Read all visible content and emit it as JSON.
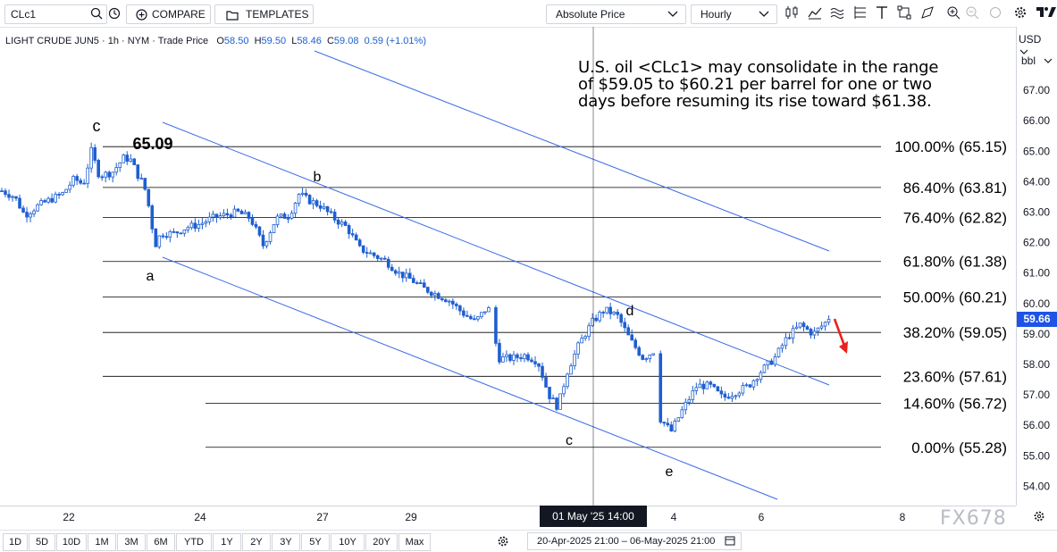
{
  "toolbar": {
    "symbol": "CLc1",
    "compare_label": "COMPARE",
    "templates_label": "TEMPLATES",
    "price_type": "Absolute Price",
    "interval": "Hourly"
  },
  "legend": {
    "title": "LIGHT CRUDE JUN5 · 1h · NYM · Trade Price",
    "o_label": "O",
    "o": "58.50",
    "h_label": "H",
    "h": "59.50",
    "l_label": "L",
    "l": "58.46",
    "c_label": "C",
    "c": "59.08",
    "change": "0.59 (+1.01%)"
  },
  "headline": [
    "U.S. oil <CLc1> may consolidate in the range",
    "of $59.05 to $60.21 per barrel for one or two",
    "days before resuming its rise toward $61.38."
  ],
  "axis": {
    "currency": "USD",
    "unit": "bbl",
    "current_price": "59.66",
    "crosshair_date": "01 May '25   14:00"
  },
  "range_buttons": [
    "1D",
    "5D",
    "10D",
    "1M",
    "3M",
    "6M",
    "YTD",
    "1Y",
    "2Y",
    "3Y",
    "5Y",
    "10Y",
    "20Y",
    "Max"
  ],
  "date_range": "20-Apr-2025 21:00 – 06-May-2025 21:00",
  "watermark": "FX678",
  "colors": {
    "candle": "#1e5fd0",
    "channel": "#3c6be8",
    "fib": "#000000",
    "arrow": "#e8231b",
    "tag": "#1e53e5"
  },
  "chart_data": {
    "type": "candlestick",
    "y_axis": {
      "ticks": [
        54,
        55,
        56,
        57,
        58,
        59,
        60,
        61,
        62,
        63,
        64,
        65,
        66,
        67
      ],
      "range": [
        53.65,
        68.2
      ]
    },
    "x_axis": {
      "ticks": [
        "22",
        "24",
        "27",
        "29",
        "4",
        "6",
        "8"
      ]
    },
    "fib_levels": [
      {
        "label": "100.00% (65.15)",
        "value": 65.15
      },
      {
        "label": "86.40% (63.81)",
        "value": 63.81
      },
      {
        "label": "76.40% (62.82)",
        "value": 62.82
      },
      {
        "label": "61.80% (61.38)",
        "value": 61.38
      },
      {
        "label": "50.00% (60.21)",
        "value": 60.21
      },
      {
        "label": "38.20% (59.05)",
        "value": 59.05
      },
      {
        "label": "23.60% (57.61)",
        "value": 57.61
      },
      {
        "label": "14.60% (56.72)",
        "value": 56.72
      },
      {
        "label": "0.00% (55.28)",
        "value": 55.28
      }
    ],
    "wave_labels": [
      "c",
      "65.09",
      "a",
      "b",
      "c",
      "d",
      "e"
    ],
    "price_path": [
      {
        "t": 0.0,
        "p": 63.7
      },
      {
        "t": 1.3,
        "p": 63.5
      },
      {
        "t": 2.3,
        "p": 62.9
      },
      {
        "t": 3.6,
        "p": 63.2
      },
      {
        "t": 4.8,
        "p": 63.4
      },
      {
        "t": 6.1,
        "p": 63.6
      },
      {
        "t": 7.3,
        "p": 64.1
      },
      {
        "t": 8.2,
        "p": 63.9
      },
      {
        "t": 9.0,
        "p": 65.0
      },
      {
        "t": 9.8,
        "p": 64.2
      },
      {
        "t": 11.1,
        "p": 64.3
      },
      {
        "t": 12.3,
        "p": 64.8
      },
      {
        "t": 13.0,
        "p": 64.7
      },
      {
        "t": 13.7,
        "p": 64.2
      },
      {
        "t": 14.3,
        "p": 63.9
      },
      {
        "t": 14.9,
        "p": 63.0
      },
      {
        "t": 15.4,
        "p": 61.9
      },
      {
        "t": 16.0,
        "p": 62.3
      },
      {
        "t": 17.3,
        "p": 62.3
      },
      {
        "t": 18.6,
        "p": 62.5
      },
      {
        "t": 19.9,
        "p": 62.6
      },
      {
        "t": 21.1,
        "p": 62.8
      },
      {
        "t": 22.4,
        "p": 62.9
      },
      {
        "t": 23.7,
        "p": 63.0
      },
      {
        "t": 25.0,
        "p": 62.8
      },
      {
        "t": 26.3,
        "p": 61.9
      },
      {
        "t": 27.6,
        "p": 62.8
      },
      {
        "t": 28.9,
        "p": 62.9
      },
      {
        "t": 29.9,
        "p": 63.6
      },
      {
        "t": 30.8,
        "p": 63.4
      },
      {
        "t": 32.1,
        "p": 63.2
      },
      {
        "t": 33.4,
        "p": 62.8
      },
      {
        "t": 34.7,
        "p": 62.5
      },
      {
        "t": 36.0,
        "p": 61.8
      },
      {
        "t": 37.3,
        "p": 61.6
      },
      {
        "t": 38.6,
        "p": 61.4
      },
      {
        "t": 39.9,
        "p": 61.0
      },
      {
        "t": 41.1,
        "p": 60.8
      },
      {
        "t": 42.4,
        "p": 60.5
      },
      {
        "t": 43.7,
        "p": 60.3
      },
      {
        "t": 45.0,
        "p": 60.1
      },
      {
        "t": 46.3,
        "p": 59.7
      },
      {
        "t": 47.6,
        "p": 59.4
      },
      {
        "t": 48.9,
        "p": 59.9
      },
      {
        "t": 50.0,
        "p": 58.2
      },
      {
        "t": 51.3,
        "p": 58.2
      },
      {
        "t": 52.6,
        "p": 58.3
      },
      {
        "t": 53.9,
        "p": 58.1
      },
      {
        "t": 55.0,
        "p": 57.0
      },
      {
        "t": 55.9,
        "p": 56.6
      },
      {
        "t": 56.9,
        "p": 57.8
      },
      {
        "t": 58.1,
        "p": 58.7
      },
      {
        "t": 59.4,
        "p": 59.4
      },
      {
        "t": 60.6,
        "p": 59.8
      },
      {
        "t": 61.9,
        "p": 59.6
      },
      {
        "t": 63.2,
        "p": 58.8
      },
      {
        "t": 64.5,
        "p": 58.2
      },
      {
        "t": 65.8,
        "p": 58.5
      },
      {
        "t": 66.0,
        "p": 56.3
      },
      {
        "t": 67.3,
        "p": 55.8
      },
      {
        "t": 68.6,
        "p": 56.6
      },
      {
        "t": 69.9,
        "p": 57.3
      },
      {
        "t": 71.2,
        "p": 57.3
      },
      {
        "t": 72.5,
        "p": 56.9
      },
      {
        "t": 73.8,
        "p": 57.1
      },
      {
        "t": 75.1,
        "p": 57.3
      },
      {
        "t": 76.4,
        "p": 57.8
      },
      {
        "t": 77.7,
        "p": 58.2
      },
      {
        "t": 79.0,
        "p": 58.9
      },
      {
        "t": 80.3,
        "p": 59.3
      },
      {
        "t": 81.6,
        "p": 59.0
      },
      {
        "t": 82.9,
        "p": 59.4
      },
      {
        "t": 83.4,
        "p": 59.66
      }
    ]
  }
}
